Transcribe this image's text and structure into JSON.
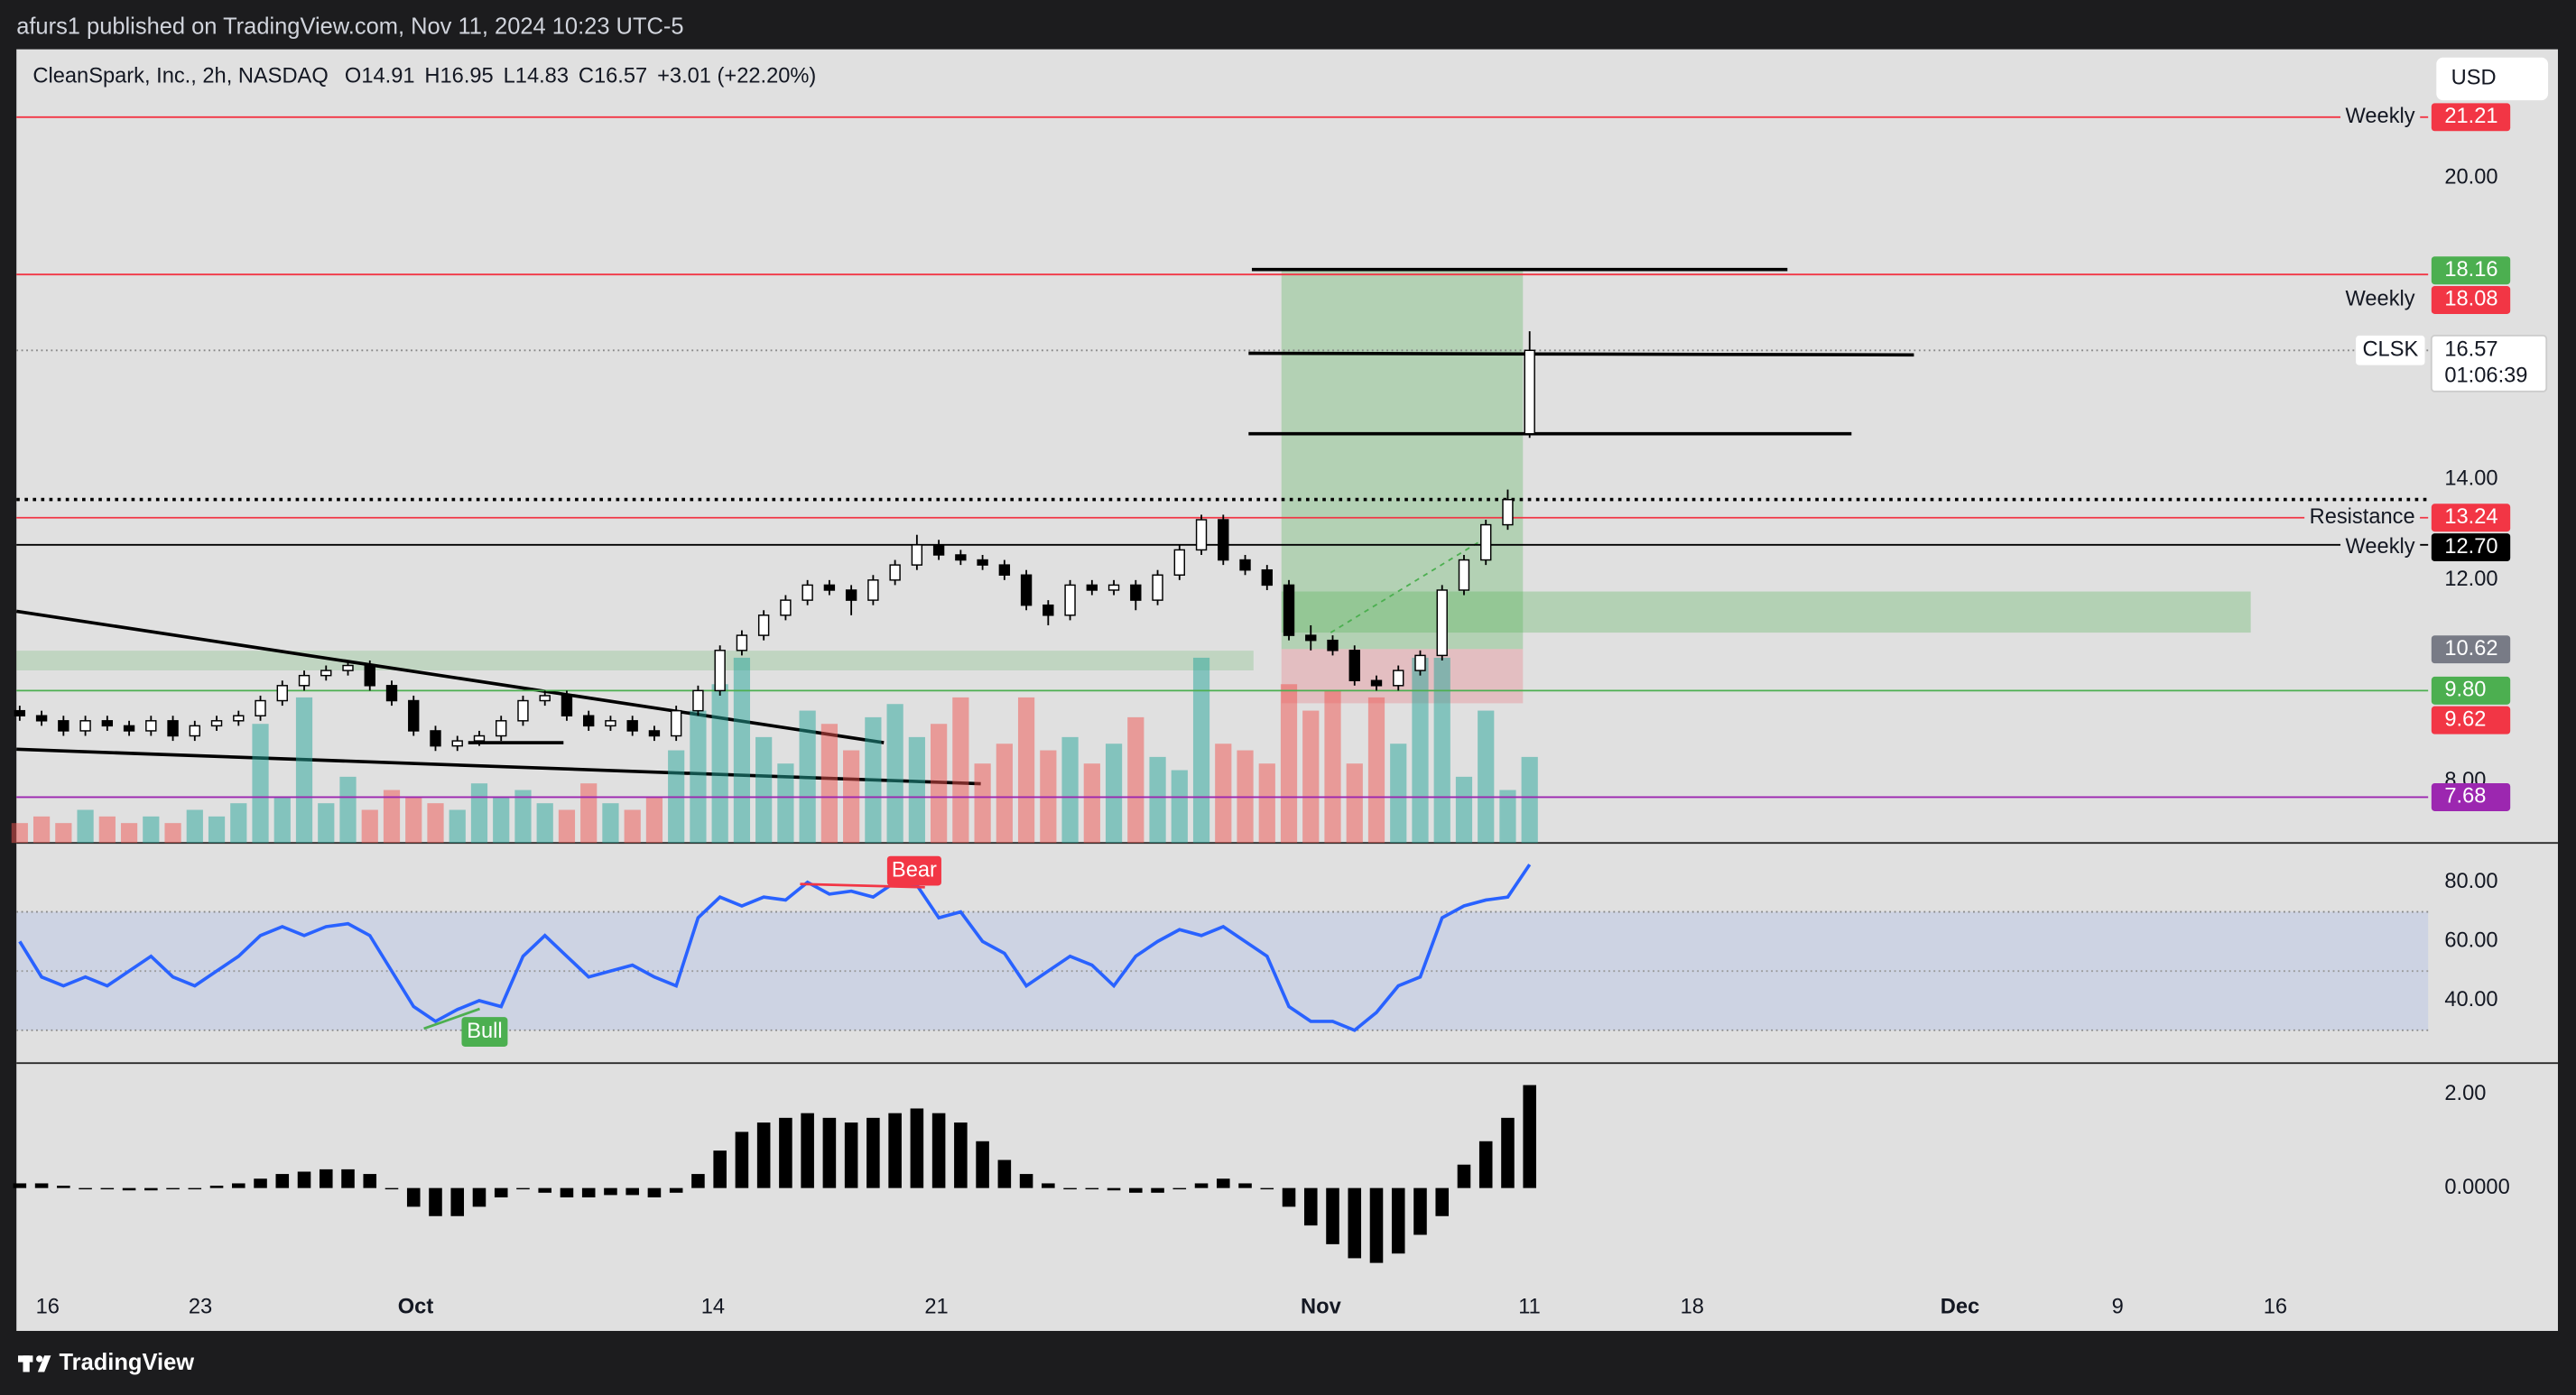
{
  "header": {
    "text": "afurs1 published on TradingView.com, Nov 11, 2024 10:23 UTC-5"
  },
  "footer": {
    "logo": "TradingView"
  },
  "chart_data": {
    "type": "candlestick",
    "title": "CleanSpark, Inc., 2h, NASDAQ",
    "legend": [
      {
        "label": "O",
        "value": 14.91
      },
      {
        "label": "H",
        "value": 16.95
      },
      {
        "label": "L",
        "value": 14.83
      },
      {
        "label": "C",
        "value": 16.57
      }
    ],
    "change": "+3.01 (+22.20%)",
    "currency": "USD",
    "x_labels": [
      "16",
      "23",
      "Oct",
      "14",
      "21",
      "Nov",
      "11",
      "18",
      "Dec",
      "9",
      "16"
    ],
    "ohlc": [
      [
        9.4,
        9.5,
        9.2,
        9.3
      ],
      [
        9.3,
        9.4,
        9.1,
        9.2
      ],
      [
        9.2,
        9.3,
        8.9,
        9.0
      ],
      [
        9.0,
        9.3,
        8.9,
        9.2
      ],
      [
        9.2,
        9.3,
        9.0,
        9.1
      ],
      [
        9.1,
        9.2,
        8.9,
        9.0
      ],
      [
        9.0,
        9.3,
        8.9,
        9.2
      ],
      [
        9.2,
        9.3,
        8.8,
        8.9
      ],
      [
        8.9,
        9.2,
        8.8,
        9.1
      ],
      [
        9.1,
        9.3,
        9.0,
        9.2
      ],
      [
        9.2,
        9.4,
        9.1,
        9.3
      ],
      [
        9.3,
        9.7,
        9.2,
        9.6
      ],
      [
        9.6,
        10.0,
        9.5,
        9.9
      ],
      [
        9.9,
        10.2,
        9.8,
        10.1
      ],
      [
        10.1,
        10.3,
        10.0,
        10.2
      ],
      [
        10.2,
        10.4,
        10.1,
        10.3
      ],
      [
        10.3,
        10.4,
        9.8,
        9.9
      ],
      [
        9.9,
        10.0,
        9.5,
        9.6
      ],
      [
        9.6,
        9.7,
        8.9,
        9.0
      ],
      [
        9.0,
        9.1,
        8.6,
        8.7
      ],
      [
        8.7,
        8.9,
        8.6,
        8.8
      ],
      [
        8.8,
        9.0,
        8.7,
        8.9
      ],
      [
        8.9,
        9.3,
        8.8,
        9.2
      ],
      [
        9.2,
        9.7,
        9.1,
        9.6
      ],
      [
        9.6,
        9.8,
        9.5,
        9.7
      ],
      [
        9.7,
        9.8,
        9.2,
        9.3
      ],
      [
        9.3,
        9.4,
        9.0,
        9.1
      ],
      [
        9.1,
        9.3,
        9.0,
        9.2
      ],
      [
        9.2,
        9.3,
        8.9,
        9.0
      ],
      [
        9.0,
        9.1,
        8.8,
        8.9
      ],
      [
        8.9,
        9.5,
        8.8,
        9.4
      ],
      [
        9.4,
        9.9,
        9.3,
        9.8
      ],
      [
        9.8,
        10.7,
        9.7,
        10.6
      ],
      [
        10.6,
        11.0,
        10.5,
        10.9
      ],
      [
        10.9,
        11.4,
        10.8,
        11.3
      ],
      [
        11.3,
        11.7,
        11.2,
        11.6
      ],
      [
        11.6,
        12.0,
        11.5,
        11.9
      ],
      [
        11.9,
        12.0,
        11.7,
        11.8
      ],
      [
        11.8,
        11.9,
        11.3,
        11.6
      ],
      [
        11.6,
        12.1,
        11.5,
        12.0
      ],
      [
        12.0,
        12.4,
        11.9,
        12.3
      ],
      [
        12.3,
        12.9,
        12.2,
        12.7
      ],
      [
        12.7,
        12.8,
        12.4,
        12.5
      ],
      [
        12.5,
        12.6,
        12.3,
        12.4
      ],
      [
        12.4,
        12.5,
        12.2,
        12.3
      ],
      [
        12.3,
        12.4,
        12.0,
        12.1
      ],
      [
        12.1,
        12.2,
        11.4,
        11.5
      ],
      [
        11.5,
        11.6,
        11.1,
        11.3
      ],
      [
        11.3,
        12.0,
        11.2,
        11.9
      ],
      [
        11.9,
        12.0,
        11.7,
        11.8
      ],
      [
        11.8,
        12.0,
        11.7,
        11.9
      ],
      [
        11.9,
        12.0,
        11.4,
        11.6
      ],
      [
        11.6,
        12.2,
        11.5,
        12.1
      ],
      [
        12.1,
        12.7,
        12.0,
        12.6
      ],
      [
        12.6,
        13.3,
        12.5,
        13.2
      ],
      [
        13.2,
        13.3,
        12.3,
        12.4
      ],
      [
        12.4,
        12.5,
        12.1,
        12.2
      ],
      [
        12.2,
        12.3,
        11.8,
        11.9
      ],
      [
        11.9,
        12.0,
        10.8,
        10.9
      ],
      [
        10.9,
        11.1,
        10.6,
        10.8
      ],
      [
        10.8,
        10.9,
        10.5,
        10.6
      ],
      [
        10.6,
        10.7,
        9.9,
        10.0
      ],
      [
        10.0,
        10.1,
        9.8,
        9.9
      ],
      [
        9.9,
        10.3,
        9.8,
        10.2
      ],
      [
        10.2,
        10.6,
        10.1,
        10.5
      ],
      [
        10.5,
        11.9,
        10.4,
        11.8
      ],
      [
        11.8,
        12.5,
        11.7,
        12.4
      ],
      [
        12.4,
        13.2,
        12.3,
        13.1
      ],
      [
        13.1,
        13.8,
        13.0,
        13.6
      ],
      [
        14.91,
        16.95,
        14.83,
        16.57
      ]
    ],
    "volume": [
      3,
      4,
      3,
      5,
      4,
      3,
      4,
      3,
      5,
      4,
      6,
      18,
      7,
      22,
      6,
      10,
      5,
      8,
      7,
      6,
      5,
      9,
      7,
      8,
      6,
      5,
      9,
      6,
      5,
      7,
      14,
      20,
      24,
      28,
      16,
      12,
      20,
      18,
      14,
      19,
      21,
      16,
      18,
      22,
      12,
      15,
      22,
      14,
      16,
      12,
      15,
      19,
      13,
      11,
      28,
      15,
      14,
      12,
      24,
      20,
      23,
      12,
      22,
      15,
      28,
      28,
      10,
      20,
      8,
      13
    ],
    "volume_ylim": [
      0,
      120
    ],
    "up_color": "#26a69a",
    "down_color": "#ef5350",
    "ylim": [
      6.77,
      22.56
    ],
    "yticks": [
      {
        "value": 8,
        "label": "8.00"
      },
      {
        "value": 12,
        "label": "12.00"
      },
      {
        "value": 14,
        "label": "14.00"
      },
      {
        "value": 20,
        "label": "20.00"
      }
    ],
    "price_levels": [
      {
        "value": 21.21,
        "label": "21.21",
        "name": "Weekly",
        "color": "#f23645",
        "line": true
      },
      {
        "value": 18.16,
        "label": "18.16",
        "color": "#4caf50",
        "line": false
      },
      {
        "value": 18.08,
        "label": "18.08",
        "name": "Weekly",
        "color": "#f23645",
        "line": true
      },
      {
        "value": 13.24,
        "label": "13.24",
        "name": "Resistance",
        "color": "#f23645",
        "line": true
      },
      {
        "value": 12.7,
        "label": "12.70",
        "name": "Weekly",
        "color": "#000000",
        "line": true
      },
      {
        "value": 10.62,
        "label": "10.62",
        "color": "#787b86",
        "line": false
      },
      {
        "value": 9.8,
        "label": "9.80",
        "color": "#4caf50",
        "line": true
      },
      {
        "value": 9.62,
        "label": "9.62",
        "color": "#f23645",
        "line": false
      },
      {
        "value": 7.68,
        "label": "7.68",
        "color": "#9c27b0",
        "line": true
      }
    ],
    "last_price": {
      "name": "CLSK",
      "value": 16.57,
      "countdown": "01:06:39"
    },
    "rsi": {
      "values": [
        60,
        48,
        45,
        48,
        45,
        50,
        55,
        48,
        45,
        50,
        55,
        62,
        65,
        62,
        65,
        66,
        62,
        50,
        38,
        33,
        37,
        40,
        38,
        55,
        62,
        55,
        48,
        50,
        52,
        48,
        45,
        68,
        75,
        72,
        75,
        74,
        80,
        76,
        77,
        75,
        80,
        79,
        68,
        70,
        60,
        56,
        45,
        50,
        55,
        52,
        45,
        55,
        60,
        64,
        62,
        65,
        60,
        55,
        38,
        33,
        33,
        30,
        36,
        45,
        48,
        68,
        72,
        74,
        75,
        86
      ],
      "color": "#2962ff",
      "ylim": [
        18.9,
        93.3
      ],
      "yticks": [
        {
          "value": 40,
          "label": "40.00"
        },
        {
          "value": 60,
          "label": "60.00"
        },
        {
          "value": 80,
          "label": "80.00"
        }
      ],
      "band": [
        30,
        70
      ],
      "bear": "Bear",
      "bull": "Bull"
    },
    "macd": {
      "values": [
        0.1,
        0.1,
        0.05,
        0,
        0,
        -0.05,
        -0.05,
        0,
        0,
        0.05,
        0.1,
        0.2,
        0.3,
        0.35,
        0.4,
        0.4,
        0.3,
        0,
        -0.4,
        -0.6,
        -0.6,
        -0.4,
        -0.2,
        0,
        -0.1,
        -0.2,
        -0.2,
        -0.15,
        -0.15,
        -0.2,
        -0.1,
        0.3,
        0.8,
        1.2,
        1.4,
        1.5,
        1.6,
        1.5,
        1.4,
        1.5,
        1.6,
        1.7,
        1.6,
        1.4,
        1.0,
        0.6,
        0.3,
        0.1,
        0,
        0,
        -0.05,
        -0.1,
        -0.1,
        0,
        0.1,
        0.2,
        0.1,
        0,
        -0.4,
        -0.8,
        -1.2,
        -1.5,
        -1.6,
        -1.4,
        -1.0,
        -0.6,
        0.5,
        1.0,
        1.5,
        2.2
      ],
      "color": "#000000",
      "ylim": [
        -2.0,
        2.67
      ],
      "yticks": [
        {
          "value": 0,
          "label": "0.0000"
        },
        {
          "value": 2,
          "label": "2.00"
        }
      ]
    }
  }
}
